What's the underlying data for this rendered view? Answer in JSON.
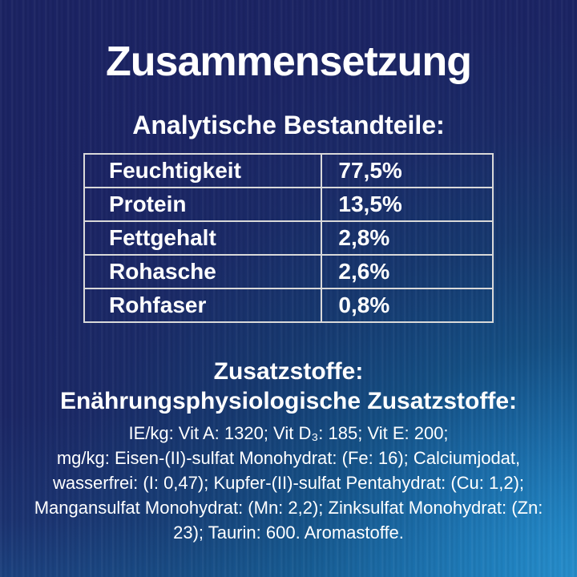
{
  "title": "Zusammensetzung",
  "analytical": {
    "heading": "Analytische Bestandteile:",
    "rows": [
      {
        "label": "Feuchtigkeit",
        "value": "77,5%"
      },
      {
        "label": "Protein",
        "value": "13,5%"
      },
      {
        "label": "Fettgehalt",
        "value": "2,8%"
      },
      {
        "label": "Rohasche",
        "value": "2,6%"
      },
      {
        "label": "Rohfaser",
        "value": "0,8%"
      }
    ]
  },
  "additives": {
    "heading": "Zusatzstoffe:",
    "subheading": "Enährungsphysiologische Zusatzstoffe:",
    "lines": [
      "IE/kg: Vit A: 1320; Vit D₃: 185; Vit E: 200;",
      "mg/kg: Eisen-(II)-sulfat Monohydrat: (Fe: 16); Calciumjodat,",
      "wasserfrei: (I: 0,47); Kupfer-(II)-sulfat Pentahydrat: (Cu: 1,2);",
      "Mangansulfat Monohydrat: (Mn: 2,2); Zinksulfat Monohydrat: (Zn:",
      "23); Taurin: 600. Aromastoffe."
    ]
  },
  "colors": {
    "background_dark": "#1b2363",
    "background_light": "#2e9ad8",
    "text": "#ffffff",
    "table_border": "#d9d9d9"
  }
}
